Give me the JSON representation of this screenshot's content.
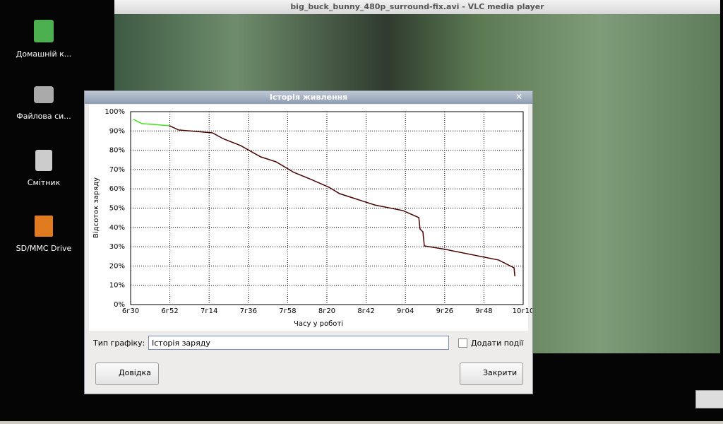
{
  "desktop": {
    "icons": [
      "Домашній к...",
      "Файлова си...",
      "Смітник",
      "SD/MMC Drive"
    ]
  },
  "vlc": {
    "title": "big_buck_bunny_480p_surround-fix.avi - VLC media player"
  },
  "dialog": {
    "title": "Історія живлення",
    "graph_type_label": "Тип графіку:",
    "graph_type_value": "Історія заряду",
    "add_events": "Додати події",
    "help_button": "Довідка",
    "close_button": "Закрити"
  },
  "chart_data": {
    "type": "line",
    "xlabel": "Часу у роботі",
    "ylabel": "Відсоток заряду",
    "xlim": [
      390,
      610
    ],
    "ylim": [
      0,
      100
    ],
    "grid": true,
    "xticks": [
      {
        "value": 390,
        "label": "6г30"
      },
      {
        "value": 412,
        "label": "6г52"
      },
      {
        "value": 434,
        "label": "7г14"
      },
      {
        "value": 456,
        "label": "7г36"
      },
      {
        "value": 478,
        "label": "7г58"
      },
      {
        "value": 500,
        "label": "8г20"
      },
      {
        "value": 522,
        "label": "8г42"
      },
      {
        "value": 544,
        "label": "9г04"
      },
      {
        "value": 566,
        "label": "9г26"
      },
      {
        "value": 588,
        "label": "9г48"
      },
      {
        "value": 610,
        "label": "10г10"
      }
    ],
    "yticks": [
      {
        "value": 0,
        "label": "0%"
      },
      {
        "value": 10,
        "label": "10%"
      },
      {
        "value": 20,
        "label": "20%"
      },
      {
        "value": 30,
        "label": "30%"
      },
      {
        "value": 40,
        "label": "40%"
      },
      {
        "value": 50,
        "label": "50%"
      },
      {
        "value": 60,
        "label": "60%"
      },
      {
        "value": 70,
        "label": "70%"
      },
      {
        "value": 80,
        "label": "80%"
      },
      {
        "value": 90,
        "label": "90%"
      },
      {
        "value": 100,
        "label": "100%"
      }
    ],
    "series": [
      {
        "color": "#44e020",
        "x": [
          391.6,
          396.3,
          411.8
        ],
        "values": [
          96,
          93.8,
          92.7
        ]
      },
      {
        "color": "#4a0000",
        "x": [
          411.8,
          416.9,
          435.9,
          441.8,
          451.7,
          462.8,
          471.5,
          481.5,
          491.3,
          501.2,
          507.1,
          526.9,
          542.7,
          551.5,
          552.2,
          553.8,
          554.6,
          566.5,
          596.2,
          604.9,
          605.3
        ],
        "values": [
          92.7,
          90.5,
          89,
          86,
          82.4,
          76.6,
          74,
          68.5,
          64.8,
          60.8,
          57.5,
          51.6,
          48.7,
          45.1,
          39.2,
          37.7,
          30.4,
          28.6,
          23.1,
          19,
          14.7
        ]
      }
    ]
  }
}
